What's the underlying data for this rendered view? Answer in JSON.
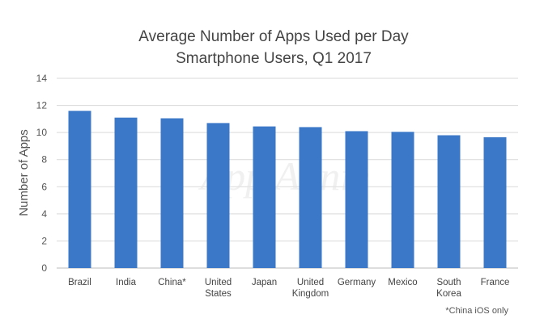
{
  "chart_data": {
    "type": "bar",
    "title": "Average Number of Apps Used per Day",
    "subtitle": "Smartphone Users, Q1 2017",
    "ylabel": "Number of Apps",
    "xlabel": "",
    "categories": [
      [
        "Brazil"
      ],
      [
        "India"
      ],
      [
        "China*"
      ],
      [
        "United",
        "States"
      ],
      [
        "Japan"
      ],
      [
        "United",
        "Kingdom"
      ],
      [
        "Germany"
      ],
      [
        "Mexico"
      ],
      [
        "South",
        "Korea"
      ],
      [
        "France"
      ]
    ],
    "values": [
      11.6,
      11.1,
      11.05,
      10.7,
      10.45,
      10.4,
      10.1,
      10.05,
      9.8,
      9.65
    ],
    "ylim": [
      0,
      14
    ],
    "yticks": [
      0,
      2,
      4,
      6,
      8,
      10,
      12,
      14
    ],
    "grid": true,
    "bar_color": "#3C78C8",
    "watermark": "App Annie",
    "footnote": "*China iOS only"
  }
}
